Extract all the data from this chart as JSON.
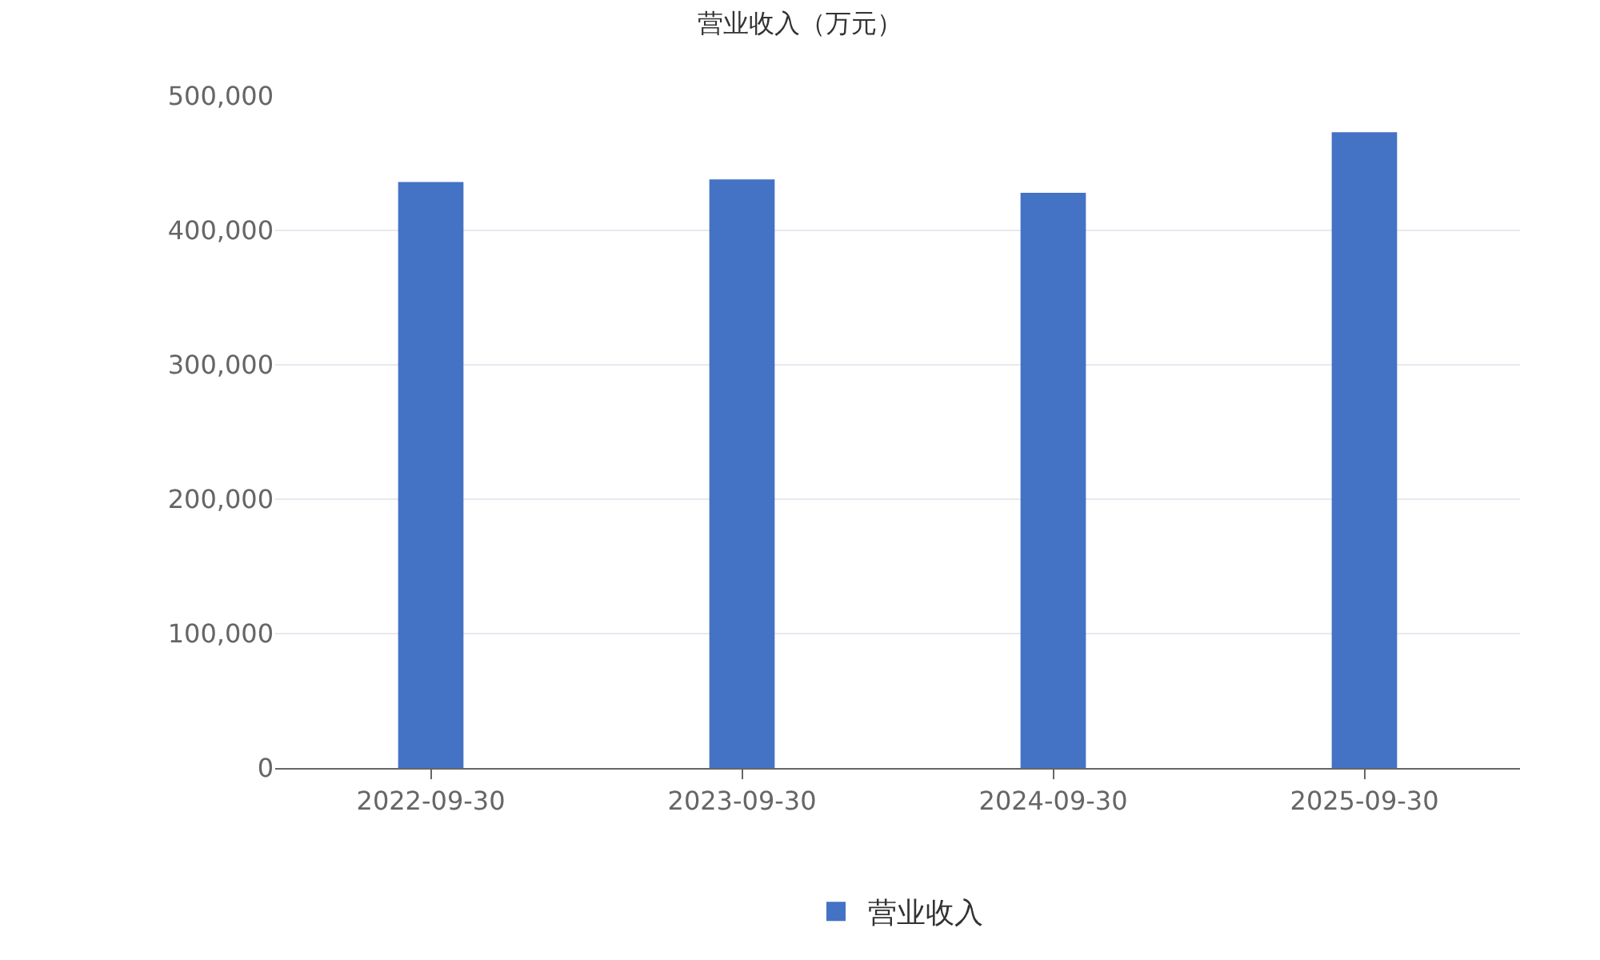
{
  "chart_data": {
    "type": "bar",
    "title": "营业收入（万元）",
    "categories": [
      "2022-09-30",
      "2023-09-30",
      "2024-09-30",
      "2025-09-30"
    ],
    "series": [
      {
        "name": "营业收入",
        "color": "#4472c4",
        "values": [
          436000,
          438000,
          428000,
          473000
        ]
      }
    ],
    "ylim": [
      0,
      500000
    ],
    "yticks": [
      {
        "value": 0,
        "label": "0"
      },
      {
        "value": 100000,
        "label": "100,000"
      },
      {
        "value": 200000,
        "label": "200,000"
      },
      {
        "value": 300000,
        "label": "300,000"
      },
      {
        "value": 400000,
        "label": "400,000"
      },
      {
        "value": 500000,
        "label": "500,000"
      }
    ],
    "grid": "y",
    "legend": "bottom"
  }
}
